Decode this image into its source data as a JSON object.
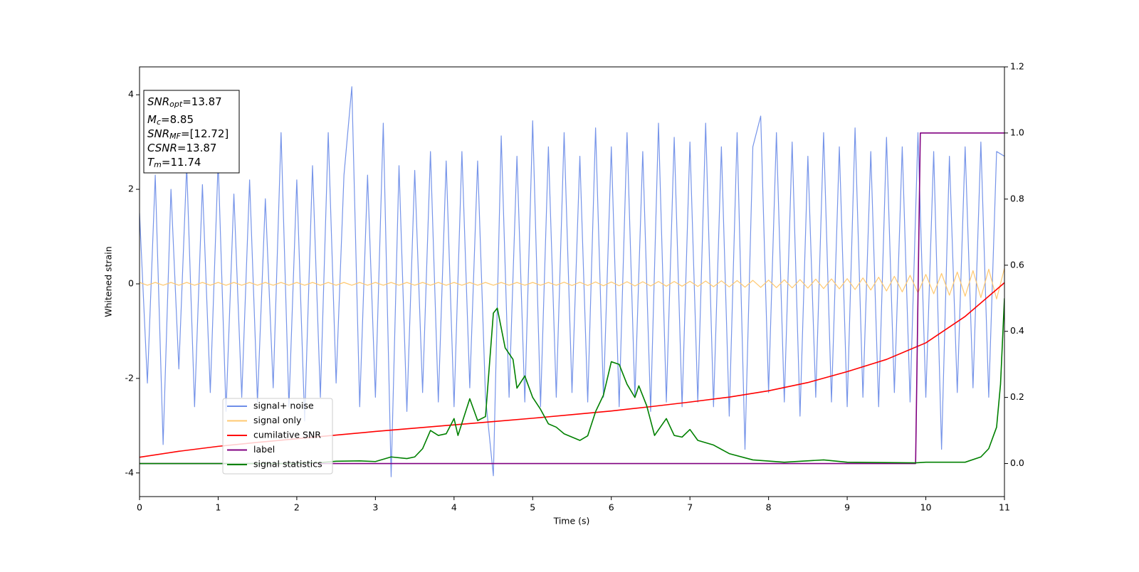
{
  "chart_data": {
    "type": "line",
    "xlabel": "Time (s)",
    "ylabel": "Whitened strain",
    "xlim": [
      0,
      11
    ],
    "ylim": [
      -4.5,
      4.59
    ],
    "y2lim": [
      -0.1,
      1.2
    ],
    "xticks": [
      0,
      1,
      2,
      3,
      4,
      5,
      6,
      7,
      8,
      9,
      10,
      11
    ],
    "yticks": [
      -4,
      -2,
      0,
      2,
      4
    ],
    "y2ticks": [
      {
        "value": 0,
        "label": "0.0"
      },
      {
        "value": 0.2,
        "label": "0.2"
      },
      {
        "value": 0.4,
        "label": "0.4"
      },
      {
        "value": 0.6,
        "label": "0.6"
      },
      {
        "value": 0.8,
        "label": "0.8"
      },
      {
        "value": 1,
        "label": "1.0"
      },
      {
        "value": 1.2,
        "label": "1.2"
      }
    ],
    "legend": "lower left",
    "annotations": [
      {
        "base": "SNR",
        "sub": "opt",
        "text": "=13.87"
      },
      {
        "base": "M",
        "sub": "c",
        "text": "=8.85"
      },
      {
        "base": "SNR",
        "sub": "MF",
        "text": "=[12.72]"
      },
      {
        "base": "CSNR",
        "text": "=13.87"
      },
      {
        "base": "T",
        "sub": "m",
        "text": "=11.74"
      }
    ],
    "x": [
      0,
      0.1,
      0.2,
      0.3,
      0.4,
      0.5,
      0.6,
      0.7,
      0.8,
      0.9,
      1,
      1.1,
      1.2,
      1.3,
      1.4,
      1.5,
      1.6,
      1.7,
      1.8,
      1.9,
      2,
      2.1,
      2.2,
      2.3,
      2.4,
      2.5,
      2.6,
      2.7,
      2.8,
      2.9,
      3,
      3.1,
      3.2,
      3.3,
      3.4,
      3.5,
      3.6,
      3.7,
      3.8,
      3.9,
      4,
      4.1,
      4.2,
      4.3,
      4.4,
      4.5,
      4.6,
      4.7,
      4.8,
      4.9,
      5,
      5.1,
      5.2,
      5.3,
      5.4,
      5.5,
      5.6,
      5.7,
      5.8,
      5.9,
      6,
      6.1,
      6.2,
      6.3,
      6.4,
      6.5,
      6.6,
      6.7,
      6.8,
      6.9,
      7,
      7.1,
      7.2,
      7.3,
      7.4,
      7.5,
      7.6,
      7.7,
      7.8,
      7.9,
      8,
      8.1,
      8.2,
      8.3,
      8.4,
      8.5,
      8.6,
      8.7,
      8.8,
      8.9,
      9,
      9.1,
      9.2,
      9.3,
      9.4,
      9.5,
      9.6,
      9.7,
      9.8,
      9.9,
      10,
      10.1,
      10.2,
      10.3,
      10.4,
      10.5,
      10.6,
      10.7,
      10.8,
      10.9,
      11
    ],
    "series": [
      {
        "name": "signal+ noise",
        "color": "#6f8ee8",
        "values": [
          1.5,
          -2.1,
          2.3,
          -3.4,
          2.0,
          -1.8,
          2.5,
          -2.6,
          2.1,
          -2.3,
          2.6,
          -2.7,
          1.9,
          -2.4,
          2.2,
          -2.5,
          1.8,
          -2.2,
          3.2,
          -2.6,
          2.2,
          -2.9,
          2.5,
          -2.4,
          3.2,
          -2.1,
          2.3,
          4.17,
          -2.6,
          2.3,
          -2.4,
          3.4,
          -4.08,
          2.5,
          -2.7,
          2.4,
          -2.3,
          2.8,
          -2.5,
          2.6,
          -2.6,
          2.8,
          -2.2,
          2.6,
          -2.4,
          -4.06,
          3.13,
          -2.4,
          2.7,
          -2.5,
          3.45,
          -2.6,
          2.9,
          -2.4,
          3.2,
          -2.3,
          2.7,
          -2.5,
          3.3,
          -2.4,
          2.9,
          -2.6,
          3.2,
          -2.4,
          2.8,
          -2.7,
          3.4,
          -2.5,
          3.1,
          -2.6,
          3.0,
          -2.5,
          3.4,
          -2.6,
          2.9,
          -2.8,
          3.2,
          -3.5,
          2.9,
          3.55,
          -2.3,
          3.2,
          -2.5,
          3.0,
          -2.8,
          2.7,
          -2.4,
          3.2,
          -2.5,
          2.9,
          -2.6,
          3.3,
          -2.4,
          2.8,
          -2.6,
          3.1,
          -2.3,
          2.9,
          -2.5,
          3.2,
          -2.4,
          2.8,
          -3.5,
          2.7,
          -2.3,
          2.9,
          -2.2,
          3.0,
          -2.4,
          2.8,
          2.7
        ]
      },
      {
        "name": "signal only",
        "color": "#ffc870",
        "values": [
          0.03,
          -0.03,
          0.03,
          -0.03,
          0.03,
          -0.03,
          0.03,
          -0.03,
          0.03,
          -0.03,
          0.03,
          -0.03,
          0.03,
          -0.03,
          0.03,
          -0.03,
          0.03,
          -0.03,
          0.03,
          -0.03,
          0.03,
          -0.03,
          0.03,
          -0.03,
          0.03,
          -0.03,
          0.03,
          -0.03,
          0.03,
          -0.03,
          0.03,
          -0.03,
          0.03,
          -0.03,
          0.03,
          -0.03,
          0.03,
          -0.03,
          0.03,
          -0.03,
          0.03,
          -0.03,
          0.03,
          -0.03,
          0.03,
          -0.03,
          0.03,
          -0.03,
          0.03,
          -0.03,
          0.03,
          -0.03,
          0.03,
          -0.03,
          0.035,
          -0.035,
          0.035,
          -0.035,
          0.04,
          -0.04,
          0.04,
          -0.04,
          0.045,
          -0.045,
          0.045,
          -0.045,
          0.05,
          -0.05,
          0.05,
          -0.05,
          0.055,
          -0.055,
          0.06,
          -0.06,
          0.065,
          -0.065,
          0.07,
          -0.07,
          0.075,
          -0.075,
          0.08,
          -0.08,
          0.085,
          -0.085,
          0.09,
          -0.09,
          0.1,
          -0.1,
          0.105,
          -0.105,
          0.11,
          -0.12,
          0.125,
          -0.13,
          0.14,
          -0.15,
          0.16,
          -0.17,
          0.18,
          -0.19,
          0.2,
          -0.21,
          0.22,
          -0.24,
          0.25,
          -0.26,
          0.28,
          -0.29,
          0.31,
          -0.32,
          0.33
        ]
      },
      {
        "name": "cumilative SNR",
        "color": "#ff0000",
        "axis": "y2",
        "x": [
          0,
          0.5,
          1,
          1.5,
          2,
          2.5,
          3,
          3.5,
          4,
          4.5,
          5,
          5.5,
          6,
          6.5,
          7,
          7.5,
          8,
          8.5,
          9,
          9.5,
          10,
          10.5,
          11
        ],
        "values": [
          0.019,
          0.037,
          0.052,
          0.064,
          0.075,
          0.086,
          0.097,
          0.107,
          0.117,
          0.127,
          0.137,
          0.148,
          0.159,
          0.172,
          0.186,
          0.201,
          0.22,
          0.245,
          0.278,
          0.315,
          0.365,
          0.445,
          0.547
        ]
      },
      {
        "name": "label",
        "color": "#800080",
        "axis": "y2",
        "x": [
          0,
          9.87,
          9.93,
          11
        ],
        "values": [
          0,
          0,
          1,
          1
        ]
      },
      {
        "name": "signal statistics",
        "color": "#008000",
        "axis": "y2",
        "x": [
          0,
          2,
          2.3,
          2.5,
          2.8,
          3,
          3.2,
          3.4,
          3.5,
          3.6,
          3.7,
          3.8,
          3.9,
          4,
          4.05,
          4.2,
          4.3,
          4.4,
          4.5,
          4.55,
          4.65,
          4.75,
          4.8,
          4.9,
          5,
          5.1,
          5.2,
          5.3,
          5.4,
          5.6,
          5.7,
          5.8,
          5.9,
          6,
          6.1,
          6.2,
          6.3,
          6.35,
          6.45,
          6.55,
          6.7,
          6.8,
          6.9,
          7,
          7.1,
          7.3,
          7.5,
          7.8,
          8.2,
          8.7,
          9,
          9.87,
          10,
          10.5,
          10.7,
          10.8,
          10.9,
          10.95,
          11
        ],
        "values": [
          0,
          0,
          0.003,
          0.007,
          0.008,
          0.006,
          0.02,
          0.015,
          0.02,
          0.045,
          0.1,
          0.085,
          0.09,
          0.136,
          0.085,
          0.196,
          0.13,
          0.142,
          0.455,
          0.47,
          0.35,
          0.315,
          0.228,
          0.265,
          0.2,
          0.164,
          0.12,
          0.11,
          0.09,
          0.07,
          0.084,
          0.157,
          0.207,
          0.308,
          0.3,
          0.24,
          0.2,
          0.235,
          0.175,
          0.085,
          0.136,
          0.085,
          0.08,
          0.103,
          0.07,
          0.056,
          0.03,
          0.011,
          0.004,
          0.011,
          0.004,
          0.002,
          0.004,
          0.004,
          0.02,
          0.045,
          0.11,
          0.24,
          0.5
        ]
      }
    ]
  }
}
